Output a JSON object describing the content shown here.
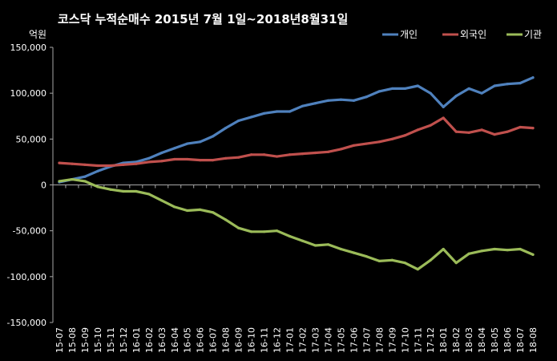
{
  "chart_data": {
    "type": "line",
    "title": "코스닥 누적순매수 2015년 7월 1일~2018년8월31일",
    "ylabel": "억원",
    "ylim": [
      -150000,
      150000
    ],
    "yticks": [
      150000,
      100000,
      50000,
      0,
      -50000,
      -100000,
      -150000
    ],
    "ytick_labels": [
      "150,000",
      "100,000",
      "50,000",
      "0",
      "-50,000",
      "-100,000",
      "-150,000"
    ],
    "categories": [
      "15-07",
      "15-08",
      "15-09",
      "15-10",
      "15-11",
      "15-12",
      "16-01",
      "16-02",
      "16-03",
      "16-04",
      "16-05",
      "16-06",
      "16-07",
      "16-08",
      "16-09",
      "16-10",
      "16-11",
      "16-12",
      "17-01",
      "17-02",
      "17-03",
      "17-04",
      "17-05",
      "17-06",
      "17-07",
      "17-08",
      "17-09",
      "17-10",
      "17-11",
      "17-12",
      "18-01",
      "18-02",
      "18-03",
      "18-04",
      "18-05",
      "18-06",
      "18-07",
      "18-08"
    ],
    "grid": false,
    "legend_position": "top-right",
    "series": [
      {
        "name": "개인",
        "color": "#4f81bd",
        "values": [
          3000,
          6000,
          9000,
          15000,
          20000,
          24000,
          25000,
          29000,
          35000,
          40000,
          45000,
          47000,
          53000,
          62000,
          70000,
          74000,
          78000,
          80000,
          80000,
          86000,
          89000,
          92000,
          93000,
          92000,
          96000,
          102000,
          105000,
          105000,
          108000,
          100000,
          85000,
          97000,
          105000,
          100000,
          108000,
          110000,
          111000,
          117000
        ]
      },
      {
        "name": "외국인",
        "color": "#c0504d",
        "values": [
          24000,
          23000,
          22000,
          21000,
          21000,
          22000,
          23000,
          25000,
          26000,
          28000,
          28000,
          27000,
          27000,
          29000,
          30000,
          33000,
          33000,
          31000,
          33000,
          34000,
          35000,
          36000,
          39000,
          43000,
          45000,
          47000,
          50000,
          54000,
          60000,
          65000,
          73000,
          58000,
          57000,
          60000,
          55000,
          58000,
          63000,
          62000
        ]
      },
      {
        "name": "기관",
        "color": "#9bbb59",
        "values": [
          4000,
          6000,
          4000,
          -2000,
          -5000,
          -7000,
          -7000,
          -10000,
          -17000,
          -24000,
          -28000,
          -27000,
          -30000,
          -38000,
          -47000,
          -51000,
          -51000,
          -50000,
          -56000,
          -61000,
          -66000,
          -65000,
          -70000,
          -74000,
          -78000,
          -83000,
          -82000,
          -85000,
          -92000,
          -82000,
          -70000,
          -85000,
          -75000,
          -72000,
          -70000,
          -71000,
          -70000,
          -76000
        ]
      }
    ]
  }
}
